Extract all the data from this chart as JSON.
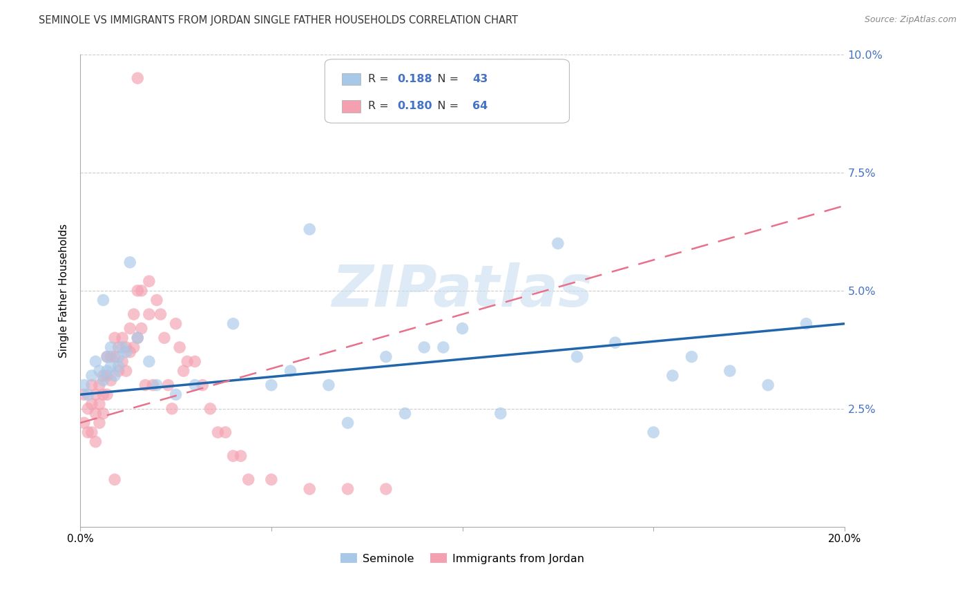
{
  "title": "SEMINOLE VS IMMIGRANTS FROM JORDAN SINGLE FATHER HOUSEHOLDS CORRELATION CHART",
  "source": "Source: ZipAtlas.com",
  "ylabel": "Single Father Households",
  "xlim": [
    0.0,
    0.2
  ],
  "ylim": [
    0.0,
    0.1
  ],
  "series1_label": "Seminole",
  "series2_label": "Immigrants from Jordan",
  "series1_R": "0.188",
  "series1_N": "43",
  "series2_R": "0.180",
  "series2_N": "64",
  "series1_color": "#a8c8e8",
  "series2_color": "#f4a0b0",
  "trendline1_color": "#2166ac",
  "trendline2_color": "#e8708a",
  "background_color": "#ffffff",
  "watermark": "ZIPatlas",
  "series1_x": [
    0.001,
    0.002,
    0.003,
    0.004,
    0.005,
    0.006,
    0.006,
    0.007,
    0.007,
    0.008,
    0.008,
    0.009,
    0.01,
    0.01,
    0.011,
    0.012,
    0.013,
    0.015,
    0.018,
    0.02,
    0.025,
    0.03,
    0.04,
    0.05,
    0.055,
    0.06,
    0.08,
    0.09,
    0.1,
    0.11,
    0.125,
    0.13,
    0.14,
    0.15,
    0.155,
    0.16,
    0.17,
    0.18,
    0.19,
    0.065,
    0.07,
    0.085,
    0.095
  ],
  "series1_y": [
    0.03,
    0.028,
    0.032,
    0.035,
    0.033,
    0.048,
    0.031,
    0.033,
    0.036,
    0.034,
    0.038,
    0.032,
    0.034,
    0.036,
    0.038,
    0.037,
    0.056,
    0.04,
    0.035,
    0.03,
    0.028,
    0.03,
    0.043,
    0.03,
    0.033,
    0.063,
    0.036,
    0.038,
    0.042,
    0.024,
    0.06,
    0.036,
    0.039,
    0.02,
    0.032,
    0.036,
    0.033,
    0.03,
    0.043,
    0.03,
    0.022,
    0.024,
    0.038
  ],
  "series2_x": [
    0.001,
    0.001,
    0.002,
    0.002,
    0.003,
    0.003,
    0.003,
    0.004,
    0.004,
    0.004,
    0.005,
    0.005,
    0.005,
    0.006,
    0.006,
    0.006,
    0.007,
    0.007,
    0.007,
    0.008,
    0.008,
    0.009,
    0.009,
    0.01,
    0.01,
    0.011,
    0.011,
    0.012,
    0.012,
    0.013,
    0.013,
    0.014,
    0.014,
    0.015,
    0.015,
    0.016,
    0.016,
    0.017,
    0.018,
    0.018,
    0.019,
    0.02,
    0.021,
    0.022,
    0.023,
    0.024,
    0.025,
    0.026,
    0.027,
    0.028,
    0.03,
    0.032,
    0.034,
    0.036,
    0.038,
    0.04,
    0.042,
    0.044,
    0.05,
    0.06,
    0.07,
    0.08,
    0.015,
    0.009
  ],
  "series2_y": [
    0.028,
    0.022,
    0.025,
    0.02,
    0.03,
    0.026,
    0.02,
    0.028,
    0.024,
    0.018,
    0.03,
    0.026,
    0.022,
    0.032,
    0.028,
    0.024,
    0.036,
    0.032,
    0.028,
    0.036,
    0.031,
    0.04,
    0.036,
    0.038,
    0.033,
    0.04,
    0.035,
    0.038,
    0.033,
    0.042,
    0.037,
    0.045,
    0.038,
    0.05,
    0.04,
    0.05,
    0.042,
    0.03,
    0.052,
    0.045,
    0.03,
    0.048,
    0.045,
    0.04,
    0.03,
    0.025,
    0.043,
    0.038,
    0.033,
    0.035,
    0.035,
    0.03,
    0.025,
    0.02,
    0.02,
    0.015,
    0.015,
    0.01,
    0.01,
    0.008,
    0.008,
    0.008,
    0.095,
    0.01
  ],
  "trendline1_x0": 0.0,
  "trendline1_y0": 0.028,
  "trendline1_x1": 0.2,
  "trendline1_y1": 0.043,
  "trendline2_x0": 0.0,
  "trendline2_y0": 0.022,
  "trendline2_x1": 0.2,
  "trendline2_y1": 0.068
}
